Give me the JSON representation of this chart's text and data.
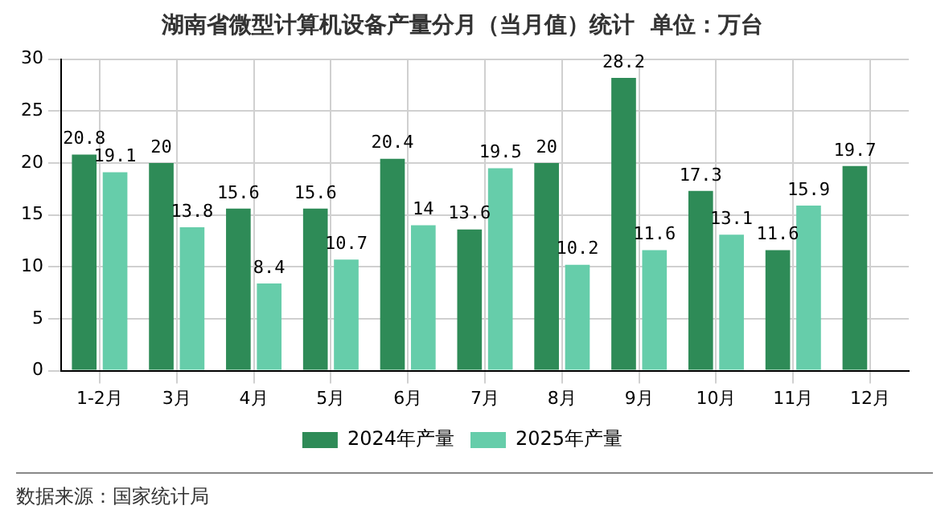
{
  "chart_data": {
    "type": "bar",
    "title": "湖南省微型计算机设备产量分月（当月值）统计  单位：万台",
    "categories": [
      "1-2月",
      "3月",
      "4月",
      "5月",
      "6月",
      "7月",
      "8月",
      "9月",
      "10月",
      "11月",
      "12月"
    ],
    "series": [
      {
        "name": "2024年产量",
        "color": "#2e8b57",
        "values": [
          20.8,
          20,
          15.6,
          15.6,
          20.4,
          13.6,
          20,
          28.2,
          17.3,
          11.6,
          19.7
        ]
      },
      {
        "name": "2025年产量",
        "color": "#66cdaa",
        "values": [
          19.1,
          13.8,
          8.4,
          10.7,
          14,
          19.5,
          10.2,
          11.6,
          13.1,
          15.9,
          null
        ]
      }
    ],
    "ylim": [
      0,
      30
    ],
    "yticks": [
      0,
      5,
      10,
      15,
      20,
      25,
      30
    ],
    "grid": true,
    "legend": "bottom",
    "data_labels": true,
    "annotations": [
      "数据来源：国家统计局"
    ]
  }
}
